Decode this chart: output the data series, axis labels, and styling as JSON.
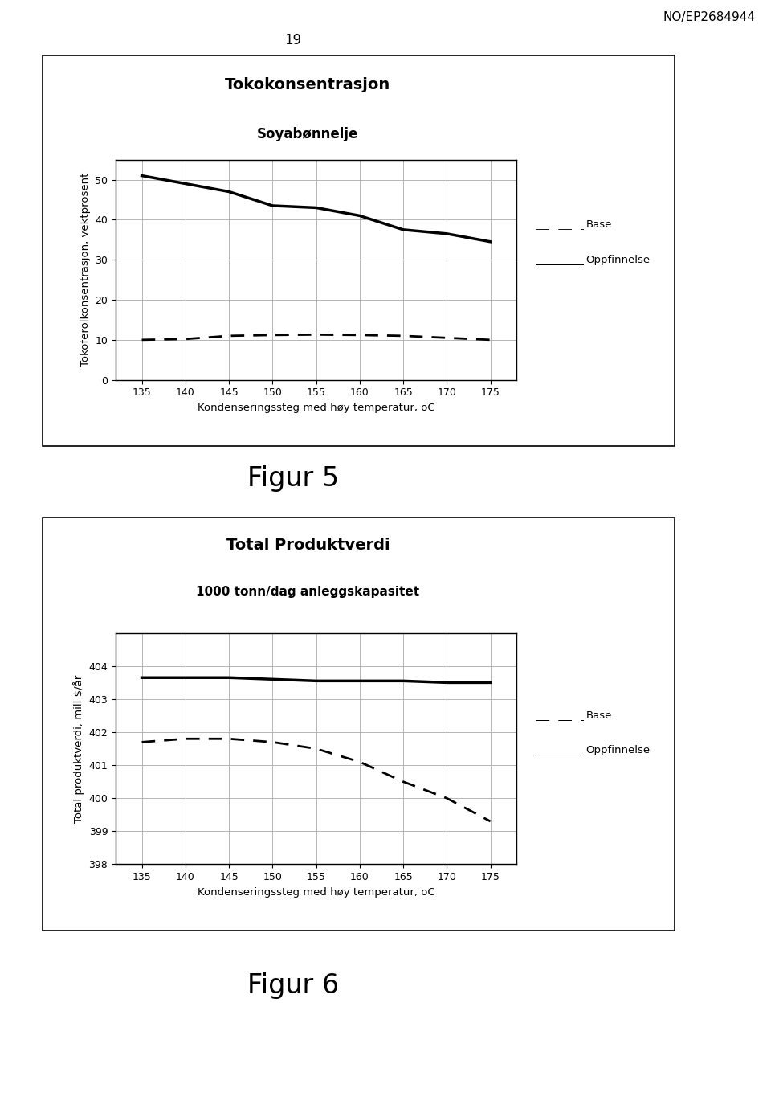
{
  "page_number": "19",
  "header_text": "NO/EP2684944",
  "fig1": {
    "title": "Tokokonsentrasjon",
    "subtitle": "Soyabønnelje",
    "xlabel": "Kondenseringssteg med høy temperatur, oC",
    "ylabel": "Tokoferolkonsentrasjon, vektprosent",
    "x": [
      135,
      140,
      145,
      150,
      155,
      160,
      165,
      170,
      175
    ],
    "base_y": [
      10.0,
      10.2,
      11.0,
      11.2,
      11.3,
      11.2,
      11.0,
      10.5,
      10.0
    ],
    "oppfinnelse_y": [
      51.0,
      49.0,
      47.0,
      43.5,
      43.0,
      41.0,
      37.5,
      36.5,
      34.5
    ],
    "ylim": [
      0,
      55
    ],
    "yticks": [
      0,
      10,
      20,
      30,
      40,
      50
    ],
    "xlim": [
      132,
      178
    ],
    "xticks": [
      135,
      140,
      145,
      150,
      155,
      160,
      165,
      170,
      175
    ],
    "legend_base": "Base",
    "legend_oppfinnelse": "Oppfinnelse",
    "figur_label": "Figur 5"
  },
  "fig2": {
    "title": "Total Produktverdi",
    "subtitle": "1000 tonn/dag anleggskapasitet",
    "xlabel": "Kondenseringssteg med høy temperatur, oC",
    "ylabel": "Total produktverdi, mill $/år",
    "x": [
      135,
      140,
      145,
      150,
      155,
      160,
      165,
      170,
      175
    ],
    "base_y": [
      401.7,
      401.8,
      401.8,
      401.7,
      401.5,
      401.1,
      400.5,
      400.0,
      399.3
    ],
    "oppfinnelse_y": [
      403.65,
      403.65,
      403.65,
      403.6,
      403.55,
      403.55,
      403.55,
      403.5,
      403.5
    ],
    "ylim": [
      398,
      405
    ],
    "yticks": [
      398,
      399,
      400,
      401,
      402,
      403,
      404
    ],
    "xlim": [
      132,
      178
    ],
    "xticks": [
      135,
      140,
      145,
      150,
      155,
      160,
      165,
      170,
      175
    ],
    "legend_base": "Base",
    "legend_oppfinnelse": "Oppfinnelse",
    "figur_label": "Figur 6"
  },
  "bg_color": "#ffffff",
  "text_color": "#000000",
  "line_color": "#000000"
}
